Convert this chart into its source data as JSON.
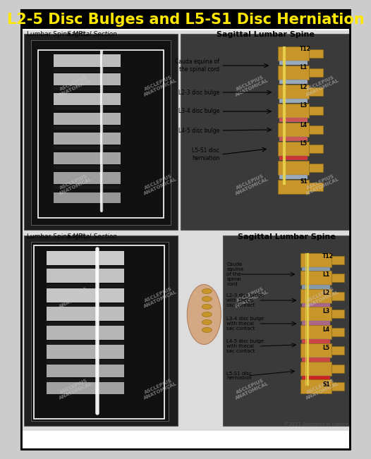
{
  "title": "L2-5 Disc Bulges and L5-S1 Disc Herniation",
  "title_color": "#FFE800",
  "title_bg": "#000000",
  "title_fontsize": 15,
  "border_color": "#000000",
  "bg_color": "#FFFFFF",
  "top_left_label_normal": "Lumbar Spine MRI, ",
  "top_left_label_italic": "Sagittal Section",
  "top_right_label": "Sagittal Lumbar Spine",
  "bottom_left_label_normal": "Lumbar Spine MRI, ",
  "bottom_left_label_italic": "Sagittal Section",
  "bottom_right_label": "Sagittal Lumbar Spine",
  "copyright": "©2011 Anatomical Justice",
  "top_right_annotations": [
    "Cauda equina of\nthe spinal cord",
    "L2-3 disc bulge",
    "L3-4 disc bulge",
    "L4-5 disc bulge",
    "L5-S1 disc\nherniation"
  ],
  "bottom_right_annotations": [
    "Cauda\nequina\nof the\nspinal\ncord",
    "L2-3 disc bulge\nwith thecal\nsac contact",
    "L3-4 disc bulge\nwith thecal\nsac contact",
    "L4-5 disc bulge\nwith thecal\nsac contact",
    "L5-S1 disc\nherniation"
  ],
  "outer_border": "#333333",
  "inner_bg": "#E8E8E8",
  "watermark_color": "#CCCCCC"
}
